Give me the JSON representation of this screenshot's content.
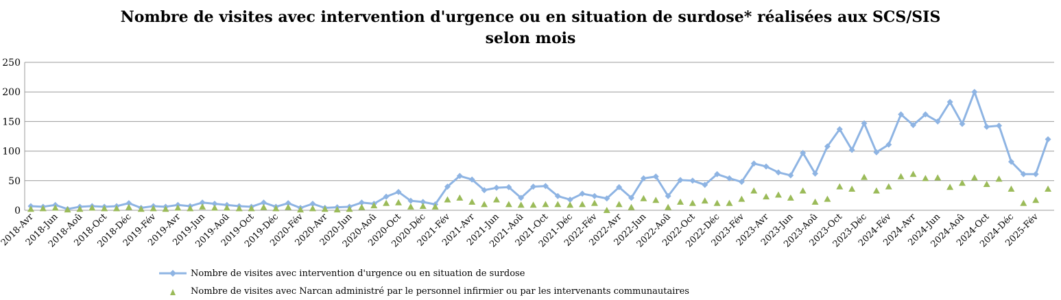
{
  "chart_data": {
    "type": "line",
    "title_line1": "Nombre de visites avec intervention d'urgence ou en situation de surdose* réalisées aux SCS/SIS",
    "title_line2": "selon mois",
    "x": [
      "2018-Avr",
      "2018-Mai",
      "2018-Jun",
      "2018-Jul",
      "2018-Aoû",
      "2018-Sep",
      "2018-Oct",
      "2018-Nov",
      "2018-Déc",
      "2019-Jan",
      "2019-Fév",
      "2019-Mar",
      "2019-Avr",
      "2019-Mai",
      "2019-Jun",
      "2019-Jul",
      "2019-Aoû",
      "2019-Sep",
      "2019-Oct",
      "2019-Nov",
      "2019-Déc",
      "2020-Jan",
      "2020-Fév",
      "2020-Mar",
      "2020-Avr",
      "2020-Mai",
      "2020-Jun",
      "2020-Jul",
      "2020-Aoû",
      "2020-Sep",
      "2020-Oct",
      "2020-Nov",
      "2020-Déc",
      "2021-Jan",
      "2021-Fév",
      "2021-Mar",
      "2021-Avr",
      "2021-Mai",
      "2021-Jun",
      "2021-Jul",
      "2021-Aoû",
      "2021-Sep",
      "2021-Oct",
      "2021-Nov",
      "2021-Déc",
      "2022-Jan",
      "2022-Fév",
      "2022-Mar",
      "2022-Avr",
      "2022-Mai",
      "2022-Jun",
      "2022-Jul",
      "2022-Aoû",
      "2022-Sep",
      "2022-Oct",
      "2022-Nov",
      "2022-Déc",
      "2023-Jan",
      "2023-Fév",
      "2023-Mar",
      "2023-Avr",
      "2023-Mai",
      "2023-Jun",
      "2023-Jul",
      "2023-Aoû",
      "2023-Sep",
      "2023-Oct",
      "2023-Nov",
      "2023-Déc",
      "2024-Jan",
      "2024-Fév",
      "2024-Mar",
      "2024-Avr",
      "2024-Mai",
      "2024-Jun",
      "2024-Jul",
      "2024-Aoû",
      "2024-Sep",
      "2024-Oct",
      "2024-Nov",
      "2024-Déc",
      "2025-Jan",
      "2025-Fév",
      "2025-Mar"
    ],
    "x_tick_labels": [
      "2018-Avr",
      "2018-Jun",
      "2018-Aoû",
      "2018-Oct",
      "2018-Déc",
      "2019-Fév",
      "2019-Avr",
      "2019-Jun",
      "2019-Aoû",
      "2019-Oct",
      "2019-Déc",
      "2020-Fév",
      "2020-Avr",
      "2020-Jun",
      "2020-Aoû",
      "2020-Oct",
      "2020-Déc",
      "2021-Fév",
      "2021-Avr",
      "2021-Jun",
      "2021-Aoû",
      "2021-Oct",
      "2021-Déc",
      "2022-Fév",
      "2022-Avr",
      "2022-Jun",
      "2022-Aoû",
      "2022-Oct",
      "2022-Déc",
      "2023-Fév",
      "2023-Avr",
      "2023-Jun",
      "2023-Aoû",
      "2023-Oct",
      "2023-Déc",
      "2024-Fév",
      "2024-Avr",
      "2024-Jun",
      "2024-Aoû",
      "2024-Oct",
      "2024-Déc",
      "2025-Fév"
    ],
    "ylim": [
      0,
      250
    ],
    "y_ticks": [
      0,
      50,
      100,
      150,
      200,
      250
    ],
    "grid": "horizontal",
    "legend_position": "bottom",
    "series": [
      {
        "name": "Nombre de visites avec intervention d'urgence ou en situation de surdose",
        "marker": "diamond",
        "color": "#8EB4E3",
        "values": [
          7,
          6,
          9,
          2,
          6,
          7,
          6,
          7,
          12,
          4,
          7,
          6,
          9,
          7,
          13,
          11,
          9,
          7,
          6,
          13,
          6,
          12,
          4,
          11,
          4,
          5,
          6,
          13,
          11,
          23,
          31,
          16,
          14,
          10,
          40,
          58,
          52,
          34,
          38,
          39,
          21,
          40,
          41,
          24,
          18,
          28,
          24,
          20,
          39,
          21,
          54,
          57,
          24,
          51,
          50,
          43,
          61,
          54,
          48,
          79,
          74,
          64,
          59,
          97,
          62,
          108,
          137,
          102,
          147,
          98,
          111,
          162,
          144,
          162,
          150,
          183,
          146,
          200,
          141,
          143,
          82,
          61,
          61,
          120
        ]
      },
      {
        "name": "Nombre de visites avec Narcan administré par le personnel infirmier ou par les intervenants communautaires",
        "marker": "triangle",
        "color": "#9BBB59",
        "values": [
          2,
          3,
          4,
          1,
          2,
          4,
          3,
          3,
          5,
          2,
          3,
          2,
          4,
          3,
          6,
          4,
          4,
          3,
          3,
          5,
          3,
          5,
          1,
          3,
          2,
          1,
          2,
          5,
          8,
          12,
          13,
          6,
          7,
          6,
          18,
          21,
          14,
          10,
          18,
          10,
          9,
          9,
          10,
          10,
          9,
          10,
          12,
          0,
          10,
          5,
          20,
          17,
          5,
          14,
          12,
          16,
          12,
          12,
          19,
          33,
          23,
          26,
          21,
          33,
          14,
          19,
          40,
          36,
          56,
          33,
          40,
          57,
          61,
          54,
          55,
          39,
          46,
          55,
          44,
          53,
          36,
          12,
          17,
          36
        ]
      }
    ]
  }
}
